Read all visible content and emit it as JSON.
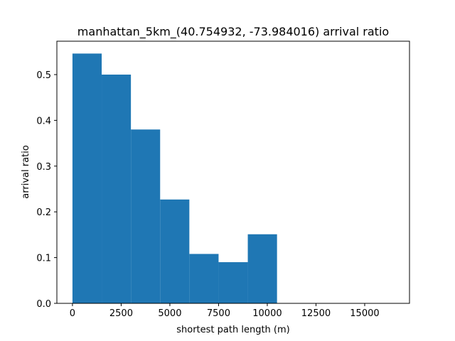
{
  "chart_data": {
    "type": "bar",
    "title": "manhattan_5km_(40.754932, -73.984016) arrival ratio",
    "xlabel": "shortest path length (m)",
    "ylabel": "arrival ratio",
    "xlim": [
      -800,
      17300
    ],
    "ylim": [
      0,
      0.573
    ],
    "bar_color": "#1f77b4",
    "bins": [
      {
        "x0": 0,
        "x1": 1500,
        "value": 0.546
      },
      {
        "x0": 1500,
        "x1": 3000,
        "value": 0.5
      },
      {
        "x0": 3000,
        "x1": 4500,
        "value": 0.38
      },
      {
        "x0": 4500,
        "x1": 6000,
        "value": 0.227
      },
      {
        "x0": 6000,
        "x1": 7500,
        "value": 0.108
      },
      {
        "x0": 7500,
        "x1": 9000,
        "value": 0.09
      },
      {
        "x0": 9000,
        "x1": 10500,
        "value": 0.151
      }
    ],
    "x_ticks": [
      {
        "value": 0,
        "label": "0"
      },
      {
        "value": 2500,
        "label": "2500"
      },
      {
        "value": 5000,
        "label": "5000"
      },
      {
        "value": 7500,
        "label": "7500"
      },
      {
        "value": 10000,
        "label": "10000"
      },
      {
        "value": 12500,
        "label": "12500"
      },
      {
        "value": 15000,
        "label": "15000"
      }
    ],
    "y_ticks": [
      {
        "value": 0,
        "label": "0.0"
      },
      {
        "value": 0.1,
        "label": "0.1"
      },
      {
        "value": 0.2,
        "label": "0.2"
      },
      {
        "value": 0.3,
        "label": "0.3"
      },
      {
        "value": 0.4,
        "label": "0.4"
      },
      {
        "value": 0.5,
        "label": "0.5"
      }
    ],
    "grid": false,
    "legend": "none"
  }
}
